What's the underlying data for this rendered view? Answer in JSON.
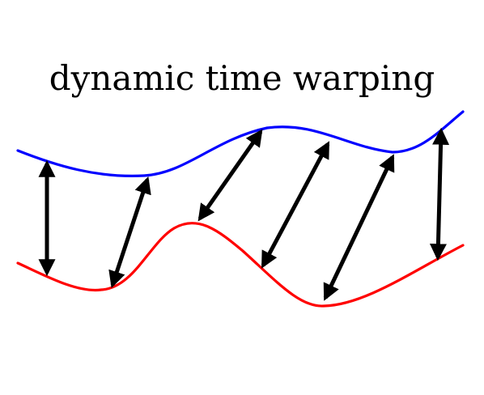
{
  "title": "dynamic time warping",
  "colors": {
    "top_series": "#0000ff",
    "bottom_series": "#ff0000",
    "arrows": "#000000",
    "background": "#ffffff"
  },
  "arrow_style": "double-headed"
}
